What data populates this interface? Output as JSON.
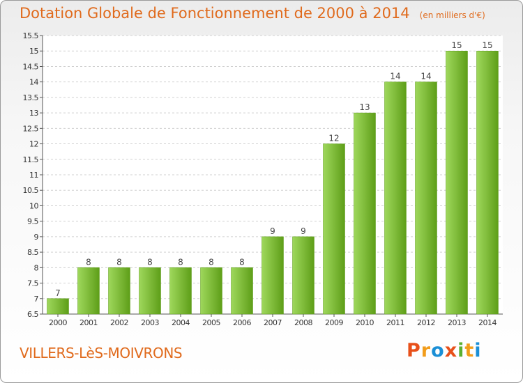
{
  "header": {
    "title": "Dotation Globale de Fonctionnement de 2000 à 2014",
    "subtitle": "(en milliers d'€)"
  },
  "footer": {
    "commune": "VILLERS-LèS-MOIVRONS",
    "logo": "Proxiti"
  },
  "colors": {
    "title": "#e06a1c",
    "bar_light": "#9fd85c",
    "bar_dark": "#5e9e18"
  },
  "chart_data": {
    "type": "bar",
    "title": "Dotation Globale de Fonctionnement de 2000 à 2014",
    "subtitle": "(en milliers d'€)",
    "categories": [
      "2000",
      "2001",
      "2002",
      "2003",
      "2004",
      "2005",
      "2006",
      "2007",
      "2008",
      "2009",
      "2010",
      "2011",
      "2012",
      "2013",
      "2014"
    ],
    "values": [
      7,
      8,
      8,
      8,
      8,
      8,
      8,
      9,
      9,
      12,
      13,
      14,
      14,
      15,
      15
    ],
    "ylim": [
      6.5,
      15.5
    ],
    "yticks": [
      "6.5",
      "7",
      "7.5",
      "8",
      "8.5",
      "9",
      "9.5",
      "10",
      "10.5",
      "11",
      "11.5",
      "12",
      "12.5",
      "13",
      "13.5",
      "14",
      "14.5",
      "15",
      "15.5"
    ],
    "grid": true,
    "xlabel": "",
    "ylabel": ""
  }
}
